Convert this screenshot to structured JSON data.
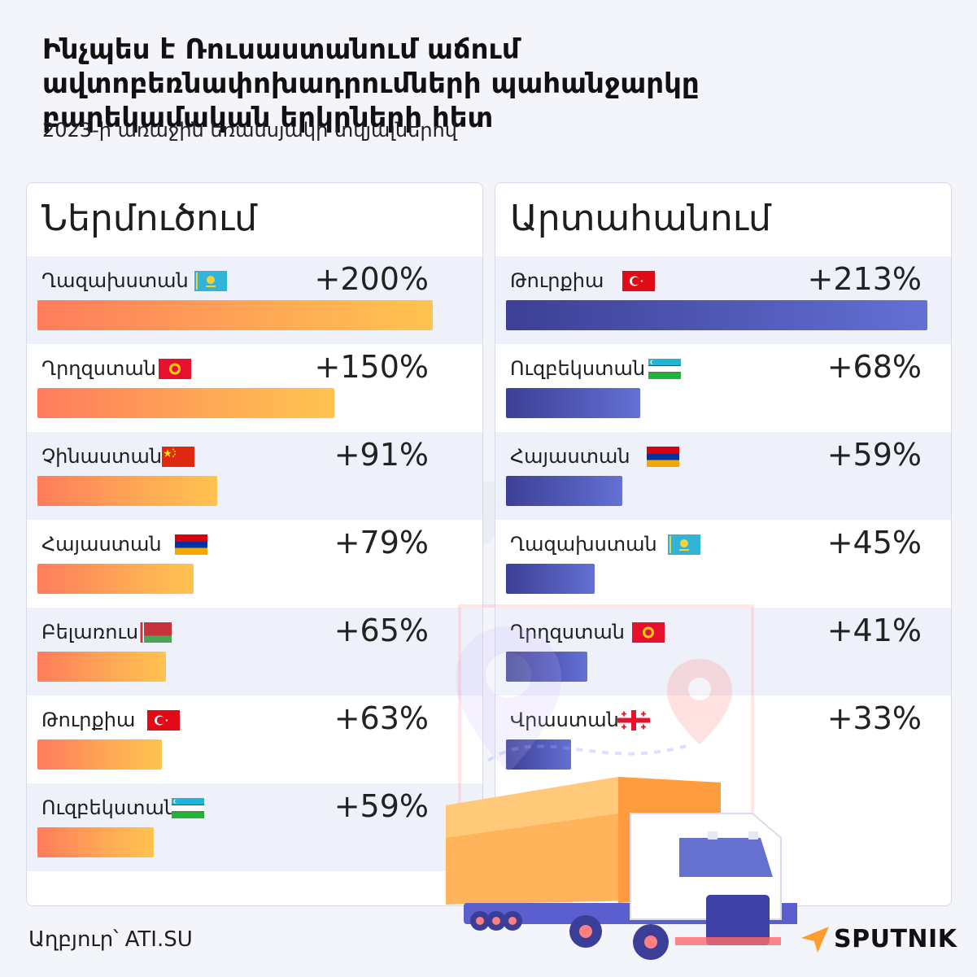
{
  "title": "Ինչպես է Ռուսաստանում աճում ավտոբեռնափոխադրումների պահանջարկը բարեկամական երկրների հետ",
  "subtitle": "2023-ի առաջին եռամսյակի տվյալներով",
  "source": "Աղբյուր՝ ATI.SU",
  "brand": "SPUTNIK",
  "colors": {
    "import_bar_start": "#ff7c5d",
    "import_bar_end": "#ffc34f",
    "export_bar_start": "#3c3f95",
    "export_bar_end": "#6470d4",
    "accent_orange": "#ff9c2e"
  },
  "chart_data": [
    {
      "type": "bar",
      "orientation": "horizontal",
      "title": "Ներմուծում",
      "categories": [
        "Ղազախստան",
        "Ղրղզստան",
        "Չինաստան",
        "Հայաստան",
        "Բելառուս",
        "Թուրքիա",
        "Ուզբեկստան"
      ],
      "values": [
        200,
        150,
        91,
        79,
        65,
        63,
        59
      ],
      "labels": [
        "+200%",
        "+150%",
        "+91%",
        "+79%",
        "+65%",
        "+63%",
        "+59%"
      ],
      "flags": [
        "kazakhstan-flag",
        "kyrgyzstan-flag",
        "china-flag",
        "armenia-flag",
        "belarus-flag",
        "turkey-flag",
        "uzbekistan-flag"
      ]
    },
    {
      "type": "bar",
      "orientation": "horizontal",
      "title": "Արտահանում",
      "categories": [
        "Թուրքիա",
        "Ուզբեկստան",
        "Հայաստան",
        "Ղազախստան",
        "Ղրղզստան",
        "Վրաստան"
      ],
      "values": [
        213,
        68,
        59,
        45,
        41,
        33
      ],
      "labels": [
        "+213%",
        "+68%",
        "+59%",
        "+45%",
        "+41%",
        "+33%"
      ],
      "flags": [
        "turkey-flag",
        "uzbekistan-flag",
        "armenia-flag",
        "kazakhstan-flag",
        "kyrgyzstan-flag",
        "georgia-flag"
      ]
    }
  ]
}
